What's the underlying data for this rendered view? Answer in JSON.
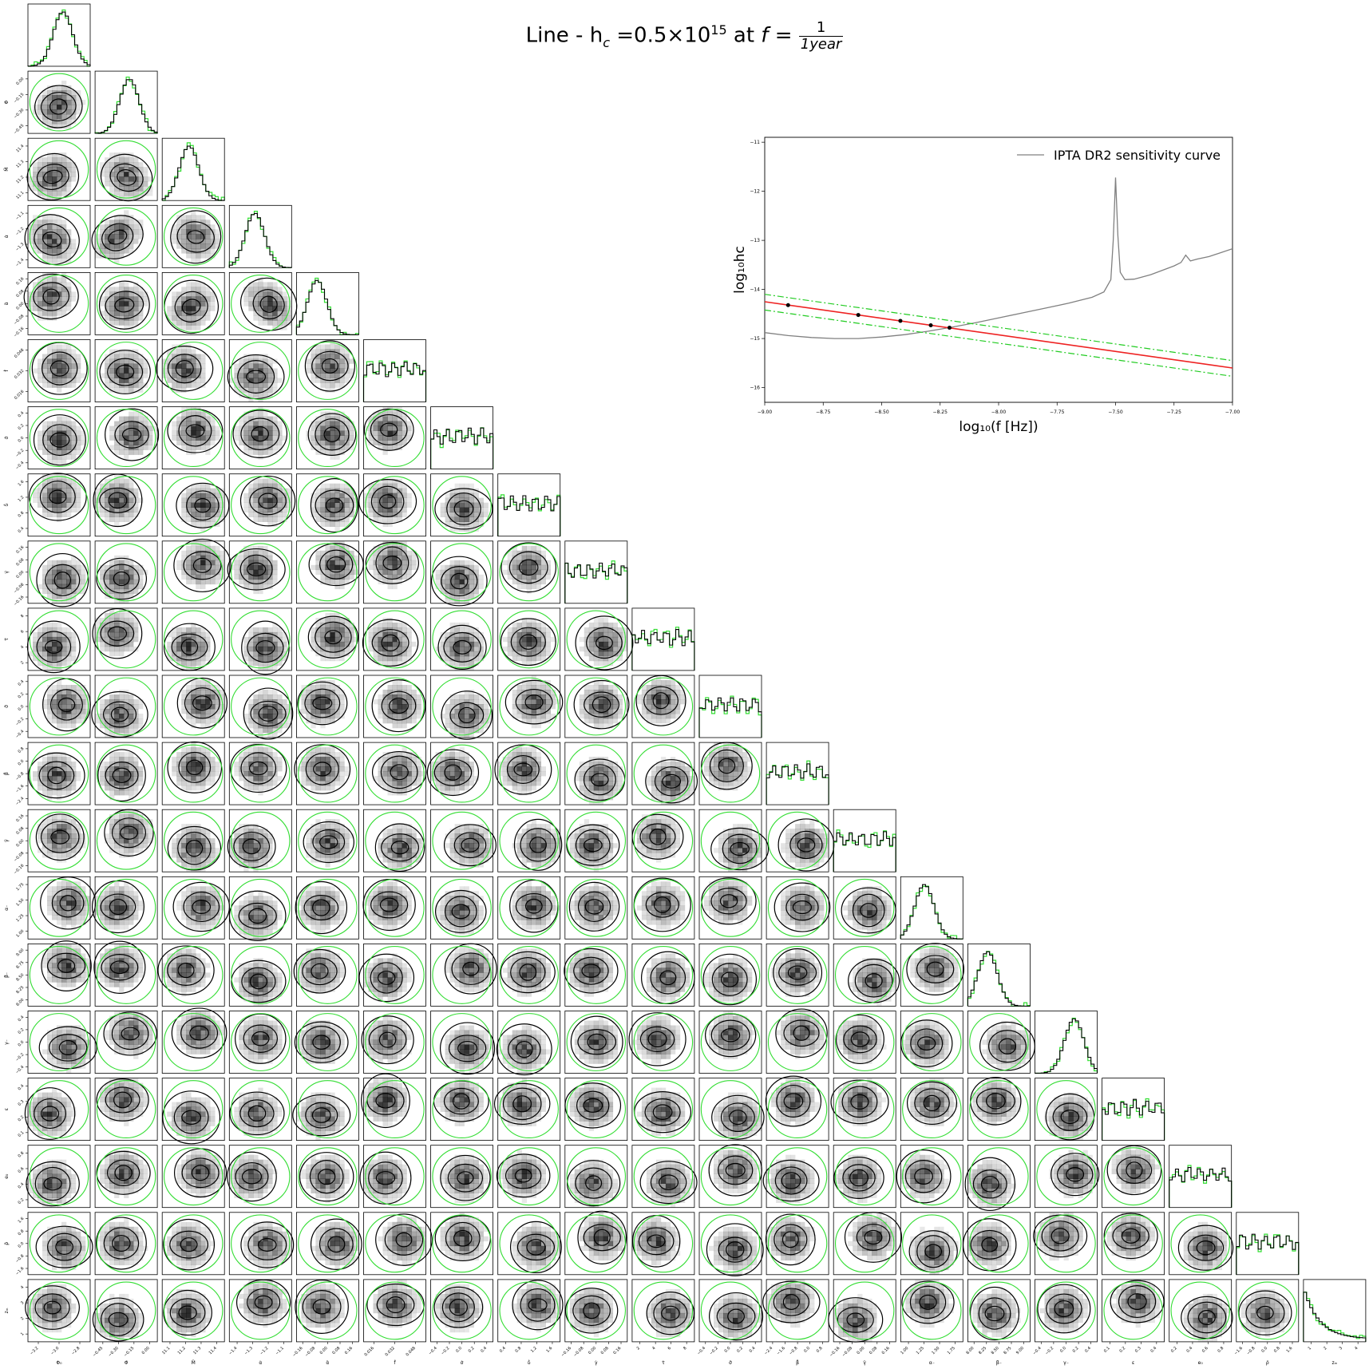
{
  "title": {
    "prefix": "Line - h",
    "prefix_sub": "c",
    "mid": " =0.5×10",
    "exp": "15",
    "at": " at ",
    "f": "f",
    "eq": " = ",
    "num": "1",
    "den": "1year"
  },
  "colors": {
    "contour": "#000000",
    "shade": "#000000",
    "prior": "#33dd33",
    "hist": "#000000",
    "red_line": "#ee2222",
    "band": "#22cc22",
    "sensitivity": "#808080"
  },
  "chart_data": [
    {
      "type": "corner",
      "parameters": [
        {
          "label": "Φ₀",
          "ticks": [
            "−3.2",
            "−3.0",
            "−2.8"
          ]
        },
        {
          "label": "Φ̇",
          "ticks": [
            "−0.45",
            "−0.30",
            "−0.15",
            "0.00"
          ]
        },
        {
          "label": "M̈",
          "ticks": [
            "11.1",
            "11.2",
            "11.3",
            "11.4"
          ]
        },
        {
          "label": "α̇",
          "ticks": [
            "−1.4",
            "−1.3",
            "−1.2",
            "−1.1"
          ]
        },
        {
          "label": "α̈",
          "ticks": [
            "−0.16",
            "−0.08",
            "0.00",
            "0.08",
            "0.16"
          ]
        },
        {
          "label": "ḟ",
          "ticks": [
            "0.016",
            "0.032",
            "0.048"
          ]
        },
        {
          "label": "σ̇",
          "ticks": [
            "−0.4",
            "−0.2",
            "0.0",
            "0.2",
            "0.4"
          ]
        },
        {
          "label": "δ̇",
          "ticks": [
            "0.4",
            "0.8",
            "1.2",
            "1.6"
          ]
        },
        {
          "label": "γ̇",
          "ticks": [
            "−0.16",
            "−0.08",
            "0.00",
            "0.08",
            "0.16"
          ]
        },
        {
          "label": "τ̇",
          "ticks": [
            "2",
            "4",
            "6",
            "8"
          ]
        },
        {
          "label": "σ̈",
          "ticks": [
            "−0.4",
            "−0.2",
            "0.0",
            "0.2",
            "0.4"
          ]
        },
        {
          "label": "β̈",
          "ticks": [
            "−2.4",
            "−1.6",
            "−0.8",
            "0.0",
            "0.8"
          ]
        },
        {
          "label": "γ̈",
          "ticks": [
            "−0.16",
            "−0.08",
            "0.00",
            "0.08",
            "0.16"
          ]
        },
        {
          "label": "α₋",
          "ticks": [
            "1.00",
            "1.25",
            "1.50",
            "1.75"
          ]
        },
        {
          "label": "β₋",
          "ticks": [
            "8.00",
            "8.25",
            "8.50",
            "8.75",
            "9.00"
          ]
        },
        {
          "label": "γ₋",
          "ticks": [
            "−0.4",
            "−0.2",
            "0.0",
            "0.2",
            "0.4"
          ]
        },
        {
          "label": "ε",
          "ticks": [
            "0.1",
            "0.2",
            "0.3",
            "0.4"
          ]
        },
        {
          "label": "e₀",
          "ticks": [
            "0.2",
            "0.4",
            "0.6",
            "0.8"
          ]
        },
        {
          "label": "ρ̈",
          "ticks": [
            "−1.6",
            "−0.8",
            "0.0",
            "0.8",
            "1.6"
          ]
        },
        {
          "label": "zₘ",
          "ticks": [
            "1",
            "2",
            "3",
            "4"
          ]
        }
      ]
    },
    {
      "type": "line",
      "xlabel": "log₁₀(f [Hz])",
      "ylabel": "log₁₀hc",
      "xlim": [
        -9.0,
        -7.0
      ],
      "ylim": [
        -16.3,
        -10.9
      ],
      "xticks": [
        -9.0,
        -8.75,
        -8.5,
        -8.25,
        -8.0,
        -7.75,
        -7.5,
        -7.25,
        -7.0
      ],
      "xtick_labels": [
        "−9.00",
        "−8.75",
        "−8.50",
        "−8.25",
        "−8.00",
        "−7.75",
        "−7.50",
        "−7.25",
        "−7.00"
      ],
      "yticks": [
        -16,
        -15,
        -14,
        -13,
        -12,
        -11
      ],
      "ytick_labels": [
        "−16",
        "−15",
        "−14",
        "−13",
        "−12",
        "−11"
      ],
      "legend_placement": "top-right",
      "series": [
        {
          "name": "IPTA DR2 sensitivity curve",
          "x": [
            -9.0,
            -8.9,
            -8.8,
            -8.7,
            -8.6,
            -8.5,
            -8.4,
            -8.3,
            -8.2,
            -8.1,
            -8.0,
            -7.9,
            -7.8,
            -7.7,
            -7.6,
            -7.55,
            -7.52,
            -7.51,
            -7.5,
            -7.49,
            -7.48,
            -7.46,
            -7.42,
            -7.35,
            -7.25,
            -7.22,
            -7.2,
            -7.18,
            -7.15,
            -7.1,
            -7.0
          ],
          "y": [
            -14.88,
            -14.94,
            -14.98,
            -15.0,
            -15.0,
            -14.97,
            -14.92,
            -14.85,
            -14.77,
            -14.68,
            -14.58,
            -14.48,
            -14.38,
            -14.28,
            -14.16,
            -14.05,
            -13.8,
            -13.0,
            -11.72,
            -12.9,
            -13.65,
            -13.8,
            -13.79,
            -13.7,
            -13.52,
            -13.45,
            -13.3,
            -13.42,
            -13.38,
            -13.33,
            -13.17
          ]
        },
        {
          "x": [
            -9.0,
            -7.0
          ],
          "y": [
            -14.25,
            -15.6
          ]
        },
        {
          "x": [
            -9.0,
            -7.0
          ],
          "y": [
            -14.1,
            -15.45
          ]
        },
        {
          "x": [
            -9.0,
            -7.0
          ],
          "y": [
            -14.42,
            -15.77
          ]
        }
      ],
      "points": {
        "x": [
          -8.9,
          -8.6,
          -8.42,
          -8.29,
          -8.21
        ],
        "y": [
          -14.32,
          -14.52,
          -14.64,
          -14.73,
          -14.78
        ]
      }
    }
  ]
}
